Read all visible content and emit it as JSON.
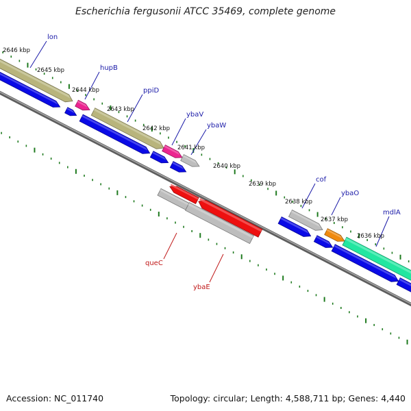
{
  "title": "Escherichia fergusonii ATCC 35469, complete genome",
  "footer": {
    "accession": "Accession: NC_011740",
    "summary": "Topology: circular; Length: 4,588,711 bp; Genes: 4,440"
  },
  "kbp_ticks": [
    "2646 kbp",
    "2645 kbp",
    "2644 kbp",
    "2643 kbp",
    "2642 kbp",
    "2641 kbp",
    "2640 kbp",
    "2639 kbp",
    "2638 kbp",
    "2637 kbp",
    "2636 kbp"
  ],
  "top_gene_labels": [
    "lon",
    "hupB",
    "ppiD",
    "ybaV",
    "ybaW",
    "cof",
    "ybaO",
    "mdlA"
  ],
  "bottom_gene_labels": [
    "queC",
    "ybaE"
  ],
  "colors": {
    "cds": "#0a0ae6",
    "gene_khaki": "#b8b47c",
    "gene_pink": "#ec2590",
    "gene_grey": "#bdbdbd",
    "gene_red": "#ee1010",
    "gene_orange": "#f08a10",
    "gene_mint": "#22e6a0",
    "backbone": "#7a7a7a",
    "tick_green": "#1e7a1e",
    "label_blue": "#1a1aa8",
    "label_red": "#c01818"
  }
}
